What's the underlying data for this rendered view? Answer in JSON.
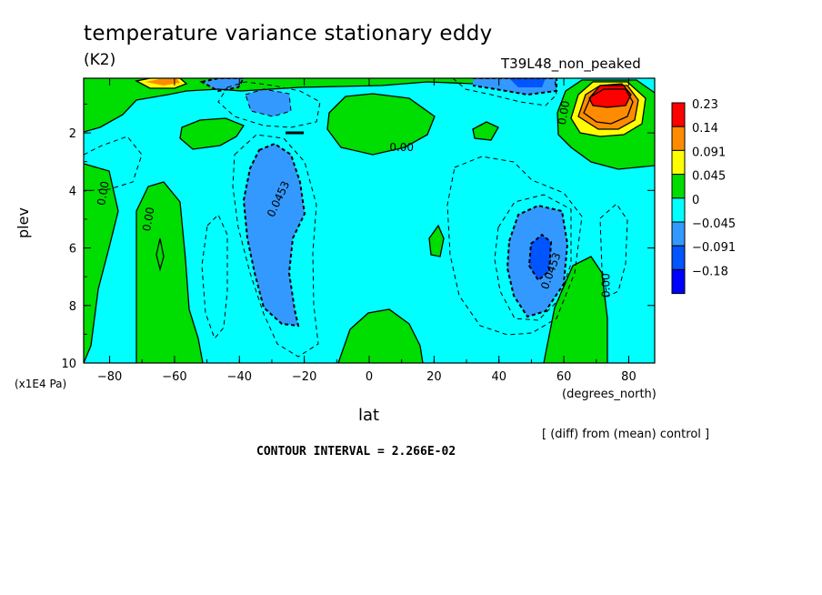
{
  "chart_data": {
    "type": "heatmap",
    "title": "temperature variance stationary eddy",
    "units": "(K2)",
    "run_label": "T39L48_non_peaked",
    "xlabel": "lat",
    "xunits": "(degrees_north)",
    "ylabel": "plev",
    "yunits": "(x1E4 Pa)",
    "xlim": [
      -88,
      88
    ],
    "ylim": [
      10,
      0.1
    ],
    "x_ticks": [
      -80,
      -60,
      -40,
      -20,
      0,
      20,
      40,
      60,
      80
    ],
    "x_tick_labels": [
      "−80",
      "−60",
      "−40",
      "−20",
      "0",
      "20",
      "40",
      "60",
      "80"
    ],
    "y_ticks": [
      2,
      4,
      6,
      8,
      10
    ],
    "y_tick_labels": [
      "2",
      "4",
      "6",
      "8",
      "10"
    ],
    "colorbar": {
      "levels": [
        "0.23",
        "0.14",
        "0.091",
        "0.045",
        "0",
        "−0.045",
        "−0.091",
        "−0.18"
      ],
      "colors": [
        "#ff0000",
        "#ff8c00",
        "#ffff00",
        "#00dd00",
        "#00ffff",
        "#3399ff",
        "#0055ff",
        "#0000ff"
      ]
    },
    "contour_labels": [
      {
        "text": "0.00",
        "lat": -82,
        "plev": 4.1,
        "rotate": -80
      },
      {
        "text": "0.00",
        "lat": -68,
        "plev": 5.0,
        "rotate": -80
      },
      {
        "text": "0.00",
        "lat": 10,
        "plev": 2.5,
        "rotate": 0
      },
      {
        "text": "0.00",
        "lat": 60,
        "plev": 1.3,
        "rotate": -80
      },
      {
        "text": "0.00",
        "lat": 73,
        "plev": 7.3,
        "rotate": -90
      },
      {
        "text": "0.0453",
        "lat": -28,
        "plev": 4.3,
        "rotate": -65
      },
      {
        "text": "0.0453",
        "lat": 56,
        "plev": 6.8,
        "rotate": -70
      }
    ],
    "diff_note": "[ (diff) from (mean) control ]",
    "contour_interval": "CONTOUR INTERVAL = 2.266E-02"
  }
}
